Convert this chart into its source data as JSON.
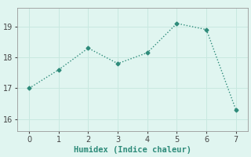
{
  "x": [
    0,
    1,
    2,
    3,
    4,
    5,
    6,
    7
  ],
  "y": [
    17.0,
    17.6,
    18.3,
    17.8,
    18.15,
    19.1,
    18.9,
    16.3
  ],
  "xlabel": "Humidex (Indice chaleur)",
  "line_color": "#2e8b7a",
  "marker": "D",
  "marker_size": 2.5,
  "background_color": "#e0f5f0",
  "grid_color": "#c8e8e0",
  "ylim": [
    15.6,
    19.6
  ],
  "xlim": [
    -0.4,
    7.4
  ],
  "yticks": [
    16,
    17,
    18,
    19
  ],
  "xticks": [
    0,
    1,
    2,
    3,
    4,
    5,
    6,
    7
  ],
  "linewidth": 1.0,
  "tick_labelsize": 7,
  "xlabel_fontsize": 7.5
}
